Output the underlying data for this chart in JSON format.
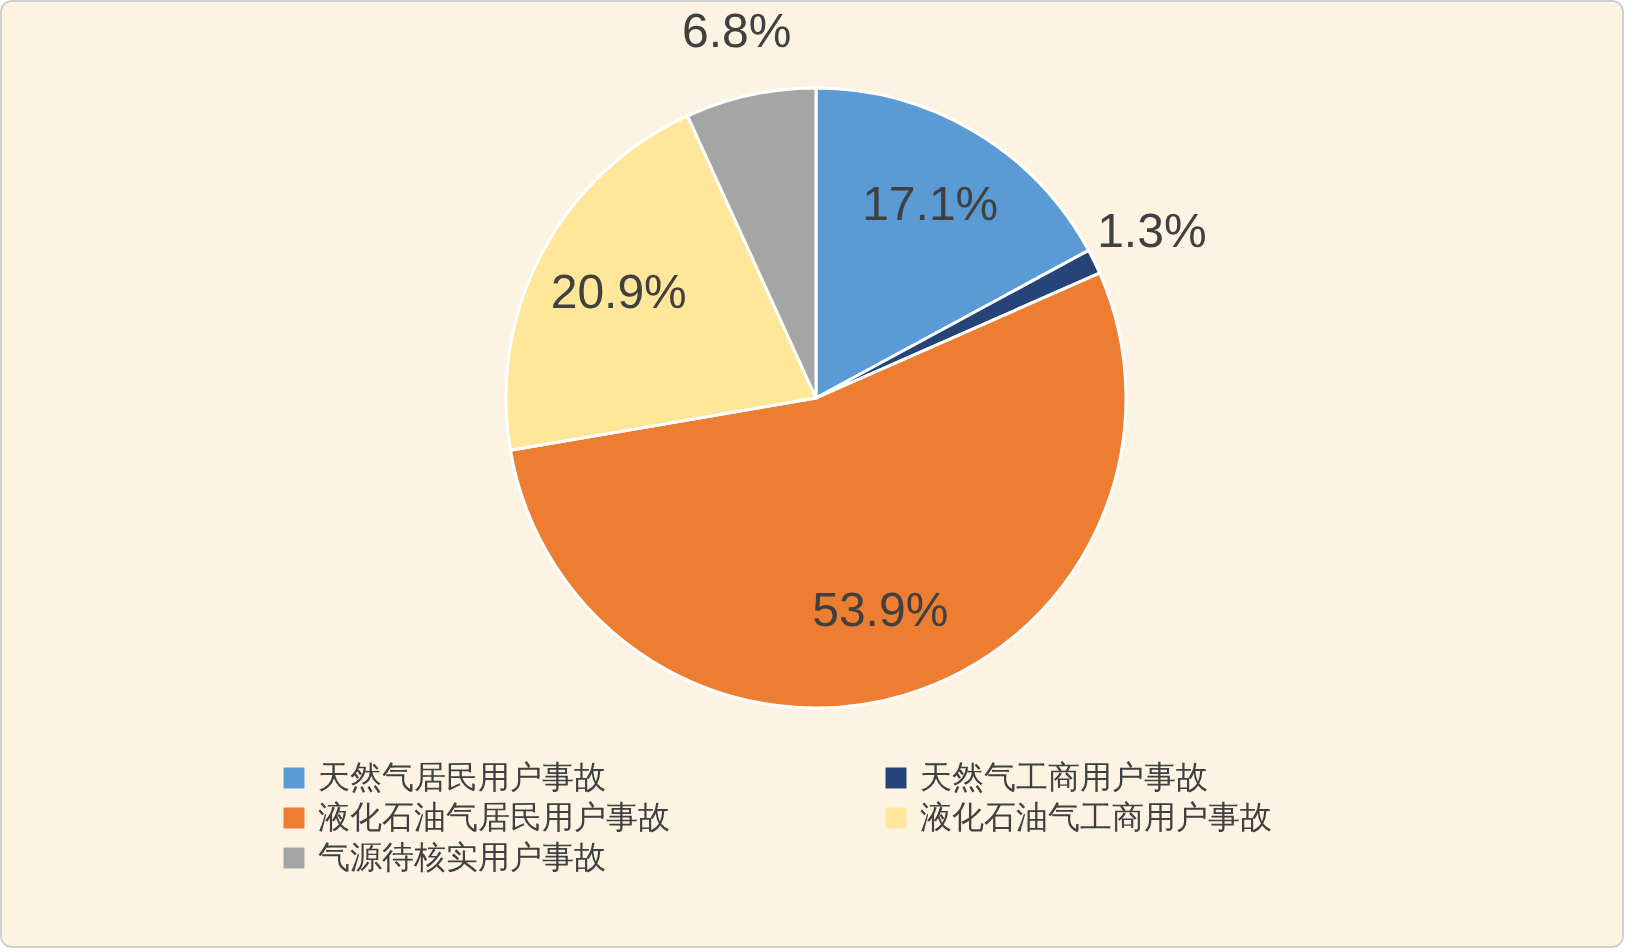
{
  "chart_data": {
    "type": "pie",
    "categories": [
      "天然气居民用户事故",
      "天然气工商用户事故",
      "液化石油气居民用户事故",
      "液化石油气工商用户事故",
      "气源待核实用户事故"
    ],
    "values": [
      17.1,
      1.3,
      53.9,
      20.9,
      6.8
    ],
    "value_labels": [
      "17.1%",
      "1.3%",
      "53.9%",
      "20.9%",
      "6.8%"
    ],
    "colors": [
      "#5b9bd5",
      "#264478",
      "#ed7d31",
      "#ffe699",
      "#a5a5a5"
    ],
    "legend": "bottom"
  }
}
